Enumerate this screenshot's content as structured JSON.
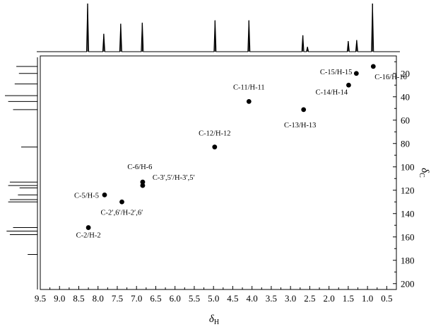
{
  "chart_data": {
    "type": "scatter",
    "title": "",
    "xlabel": {
      "symbol": "δ",
      "subscript": "H"
    },
    "ylabel": {
      "symbol": "δ",
      "subscript": "C"
    },
    "xlim": [
      9.5,
      0.25
    ],
    "ylim": [
      5,
      205
    ],
    "x_reversed": true,
    "y_reversed": true,
    "x_ticks": [
      "9.5",
      "9.0",
      "8.5",
      "8.0",
      "7.5",
      "7.0",
      "6.5",
      "6.0",
      "5.5",
      "5.0",
      "4.5",
      "4.0",
      "3.5",
      "3.0",
      "2.5",
      "2.0",
      "1.5",
      "1.0",
      "0.5"
    ],
    "y_ticks": [
      "20",
      "40",
      "60",
      "80",
      "100",
      "120",
      "140",
      "160",
      "180",
      "200"
    ],
    "grid": false,
    "points": [
      {
        "label": "C-2/H-2",
        "x": 8.25,
        "y": 152
      },
      {
        "label": "C-5/H-5",
        "x": 7.83,
        "y": 124
      },
      {
        "label": "C-2′,6′/H-2′,6′",
        "x": 7.38,
        "y": 130
      },
      {
        "label": "C-6/H-6",
        "x": 6.84,
        "y": 113
      },
      {
        "label": "C-3′,5′/H-3′,5′",
        "x": 6.84,
        "y": 116
      },
      {
        "label": "C-12/H-12",
        "x": 4.97,
        "y": 83
      },
      {
        "label": "C-11/H-11",
        "x": 4.08,
        "y": 44
      },
      {
        "label": "C-13/H-13",
        "x": 2.66,
        "y": 51
      },
      {
        "label": "C-14/H-14",
        "x": 1.49,
        "y": 30
      },
      {
        "label": "C-15/H-15",
        "x": 1.29,
        "y": 20
      },
      {
        "label": "C-16/H-16",
        "x": 0.85,
        "y": 14
      }
    ],
    "projection_1H": [
      {
        "x": 8.27,
        "h": 1.0
      },
      {
        "x": 7.85,
        "h": 0.37
      },
      {
        "x": 7.41,
        "h": 0.58
      },
      {
        "x": 6.85,
        "h": 0.6
      },
      {
        "x": 4.96,
        "h": 0.65
      },
      {
        "x": 4.08,
        "h": 0.65
      },
      {
        "x": 2.68,
        "h": 0.34
      },
      {
        "x": 2.56,
        "h": 0.1
      },
      {
        "x": 1.5,
        "h": 0.22
      },
      {
        "x": 1.28,
        "h": 0.24
      },
      {
        "x": 0.87,
        "h": 1.0
      }
    ],
    "projection_13C": [
      {
        "y": 14,
        "w": 0.65
      },
      {
        "y": 20,
        "w": 0.57
      },
      {
        "y": 29,
        "w": 0.7
      },
      {
        "y": 39,
        "w": 1.0
      },
      {
        "y": 44,
        "w": 0.9
      },
      {
        "y": 51,
        "w": 0.75
      },
      {
        "y": 83,
        "w": 0.5
      },
      {
        "y": 113,
        "w": 0.85
      },
      {
        "y": 116,
        "w": 0.9
      },
      {
        "y": 118,
        "w": 0.55
      },
      {
        "y": 124,
        "w": 0.6
      },
      {
        "y": 128,
        "w": 0.85
      },
      {
        "y": 130,
        "w": 0.9
      },
      {
        "y": 152,
        "w": 0.75
      },
      {
        "y": 155,
        "w": 0.95
      },
      {
        "y": 158,
        "w": 0.85
      },
      {
        "y": 175,
        "w": 0.3
      }
    ]
  }
}
